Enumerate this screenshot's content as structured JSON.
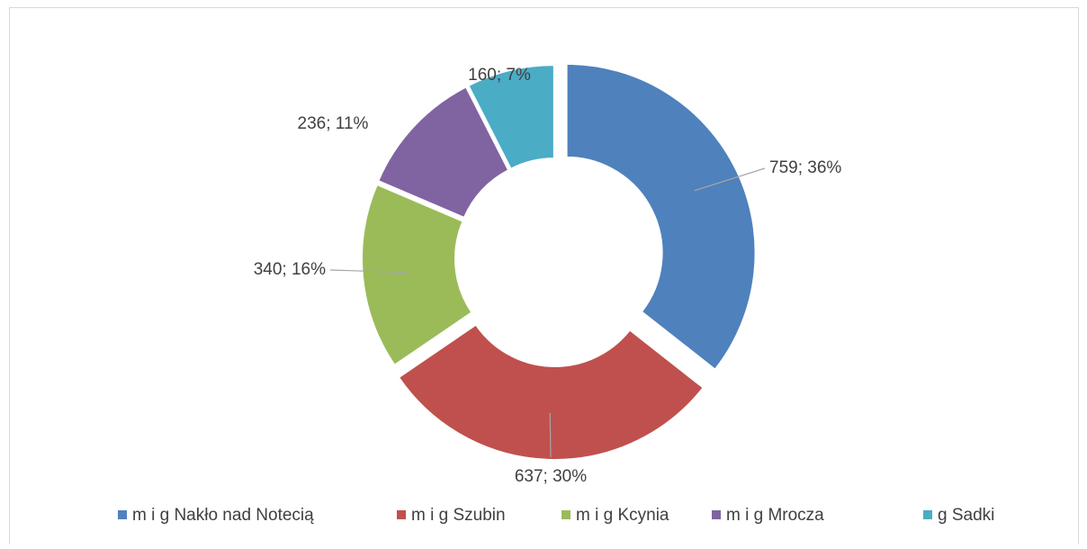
{
  "chart_data": {
    "type": "donut",
    "categories": [
      "m i g Nakło nad Notecią",
      "m i g Szubin",
      "m i g Kcynia",
      "m i g Mrocza",
      "g Sadki"
    ],
    "values": [
      759,
      637,
      340,
      236,
      160
    ],
    "value_labels": [
      "759; 36%",
      "637; 30%",
      "340; 16%",
      "236; 11%",
      "160; 7%"
    ],
    "colors": [
      "#4f81bd",
      "#c0504d",
      "#9bbb59",
      "#8064a2",
      "#4bacc6"
    ],
    "legend": "bottom"
  }
}
